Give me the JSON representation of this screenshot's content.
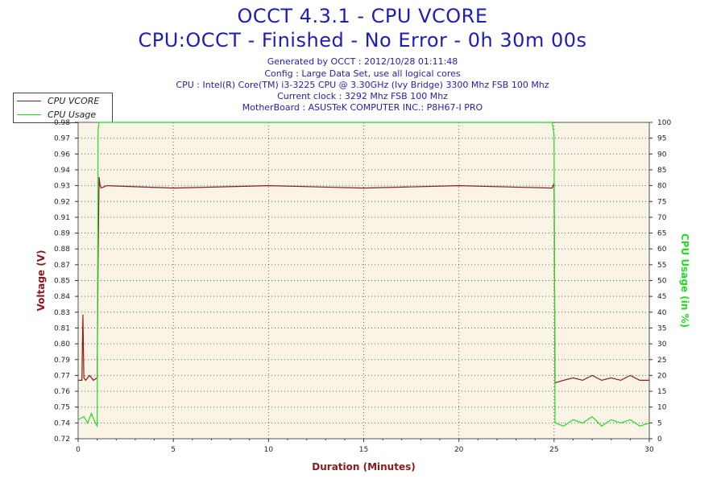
{
  "header": {
    "title": "OCCT 4.3.1 - CPU VCORE",
    "subtitle": "CPU:OCCT - Finished - No Error - 0h 30m 00s",
    "info_lines": [
      "Generated by OCCT : 2012/10/28 01:11:48",
      "Config : Large Data Set, use all logical cores",
      "CPU : Intel(R) Core(TM) i3-3225 CPU @ 3.30GHz (Ivy Bridge) 3300 Mhz FSB 100 Mhz",
      "Current clock : 3292 Mhz FSB 100 Mhz",
      "MotherBoard : ASUSTeK COMPUTER INC.: P8H67-I PRO"
    ]
  },
  "legend": {
    "items": [
      {
        "label": "CPU VCORE",
        "color": "#8b1a1a"
      },
      {
        "label": "CPU Usage",
        "color": "#22dd22"
      }
    ]
  },
  "colors": {
    "plot_background": "#faf4e6",
    "vcore": "#8b1a1a",
    "usage": "#22dd22",
    "grid": "#000000"
  },
  "chart_data": {
    "type": "line",
    "xlabel": "Duration (Minutes)",
    "ylabel_left": "Voltage (V)",
    "ylabel_right": "CPU Usage (in %)",
    "xlim": [
      0,
      30
    ],
    "ylim_left": [
      0.72,
      0.98
    ],
    "ylim_right": [
      0,
      100
    ],
    "x_ticks": [
      0,
      5,
      10,
      15,
      20,
      25,
      30
    ],
    "y_left_ticks": [
      "0.72",
      "0.74",
      "0.75",
      "0.76",
      "0.77",
      "0.79",
      "0.80",
      "0.81",
      "0.83",
      "0.84",
      "0.85",
      "0.87",
      "0.88",
      "0.89",
      "0.91",
      "0.92",
      "0.93",
      "0.94",
      "0.96",
      "0.97",
      "0.98"
    ],
    "y_right_ticks": [
      0,
      5,
      10,
      15,
      20,
      25,
      30,
      35,
      40,
      45,
      50,
      55,
      60,
      65,
      70,
      75,
      80,
      85,
      90,
      95,
      100
    ],
    "grid": true,
    "series": [
      {
        "name": "CPU VCORE",
        "axis": "left",
        "x": [
          0,
          0.2,
          0.25,
          0.3,
          0.4,
          0.6,
          0.8,
          1.0,
          1.05,
          1.1,
          1.15,
          1.2,
          1.5,
          5,
          10,
          15,
          20,
          24.9,
          25.0,
          25.05,
          25.5,
          26,
          26.5,
          27,
          27.5,
          28,
          28.5,
          29,
          29.5,
          30
        ],
        "y": [
          0.768,
          0.768,
          0.822,
          0.77,
          0.768,
          0.772,
          0.768,
          0.77,
          0.868,
          0.935,
          0.928,
          0.926,
          0.928,
          0.926,
          0.928,
          0.926,
          0.928,
          0.926,
          0.93,
          0.766,
          0.768,
          0.77,
          0.768,
          0.772,
          0.768,
          0.77,
          0.768,
          0.772,
          0.768,
          0.768
        ]
      },
      {
        "name": "CPU Usage",
        "axis": "right",
        "x": [
          0,
          0.3,
          0.5,
          0.7,
          0.9,
          1.0,
          1.05,
          1.1,
          1.2,
          5,
          10,
          15,
          20,
          24.9,
          25.0,
          25.05,
          25.5,
          26,
          26.5,
          27,
          27.5,
          28,
          28.5,
          29,
          29.5,
          30
        ],
        "y": [
          6,
          7,
          5,
          8,
          5,
          4,
          98,
          100,
          100,
          100,
          100,
          100,
          100,
          100,
          96,
          5,
          4,
          6,
          5,
          7,
          4,
          6,
          5,
          6,
          4,
          5
        ]
      }
    ]
  }
}
